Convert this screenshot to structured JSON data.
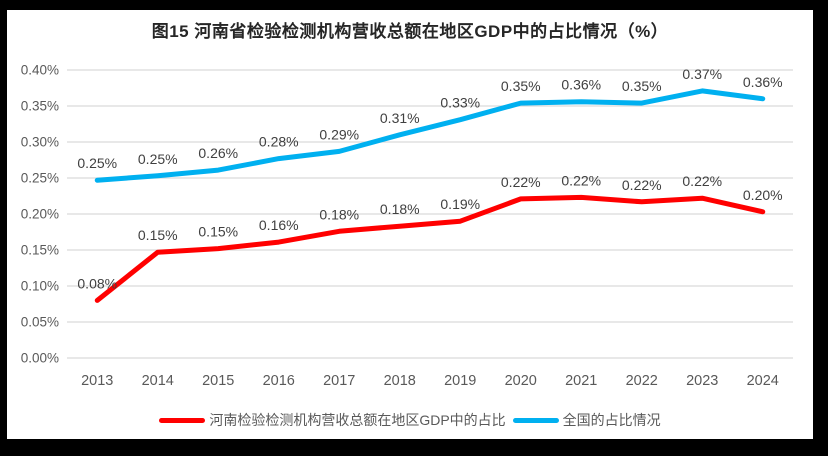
{
  "title": "图15  河南省检验检测机构营收总额在地区GDP中的占比情况（%）",
  "frame": {
    "background_color": "#000000",
    "panel_color": "#ffffff"
  },
  "chart_data": {
    "type": "line",
    "title": "图15  河南省检验检测机构营收总额在地区GDP中的占比情况（%）",
    "categories": [
      "2013",
      "2014",
      "2015",
      "2016",
      "2017",
      "2018",
      "2019",
      "2020",
      "2021",
      "2022",
      "2023",
      "2024"
    ],
    "series": [
      {
        "name": "河南检验检测机构营收总额在地区GDP中的占比",
        "color": "#ff0000",
        "labels": [
          "0.08%",
          "0.15%",
          "0.15%",
          "0.16%",
          "0.18%",
          "0.18%",
          "0.19%",
          "0.22%",
          "0.22%",
          "0.22%",
          "0.22%",
          "0.20%"
        ],
        "values": [
          0.08,
          0.147,
          0.152,
          0.161,
          0.176,
          0.183,
          0.19,
          0.221,
          0.223,
          0.217,
          0.222,
          0.203
        ]
      },
      {
        "name": "全国的占比情况",
        "color": "#00b0f0",
        "labels": [
          "0.25%",
          "0.25%",
          "0.26%",
          "0.28%",
          "0.29%",
          "0.31%",
          "0.33%",
          "0.35%",
          "0.36%",
          "0.35%",
          "0.37%",
          "0.36%"
        ],
        "values": [
          0.247,
          0.253,
          0.261,
          0.277,
          0.287,
          0.31,
          0.331,
          0.354,
          0.356,
          0.354,
          0.371,
          0.36
        ]
      }
    ],
    "xlabel": "",
    "ylabel": "",
    "y_axis": {
      "min": 0.0,
      "max": 0.4,
      "step": 0.05,
      "tick_labels": [
        "0.00%",
        "0.05%",
        "0.10%",
        "0.15%",
        "0.20%",
        "0.25%",
        "0.30%",
        "0.35%",
        "0.40%"
      ]
    },
    "grid": true,
    "legend_position": "bottom",
    "colors": {
      "gridline": "#d9d9d9",
      "axis_label": "#595959",
      "data_label": "#404040"
    }
  }
}
